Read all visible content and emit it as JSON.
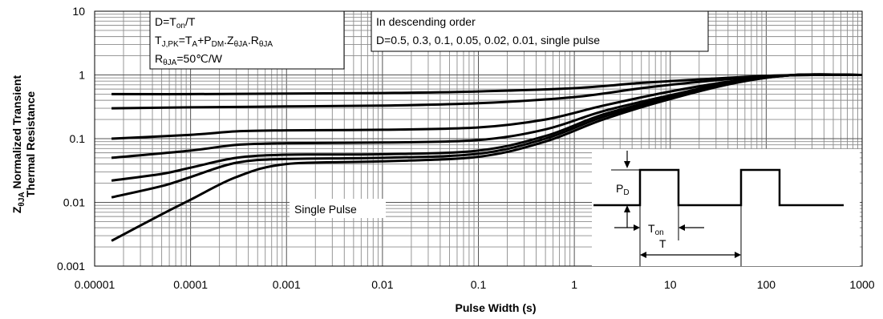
{
  "chart_data": {
    "type": "line",
    "xscale": "log",
    "yscale": "log",
    "xlim": [
      1e-05,
      1000
    ],
    "ylim": [
      0.001,
      10
    ],
    "xlabel": "Pulse Width (s)",
    "ylabel_line1": "Normalized Transient",
    "ylabel_sym": "Z",
    "ylabel_sub": "θJA",
    "ylabel_line2": "Thermal Resistance",
    "grid": true,
    "x_tick_labels": [
      "0.00001",
      "0.0001",
      "0.001",
      "0.01",
      "0.1",
      "1",
      "10",
      "100",
      "1000"
    ],
    "y_tick_labels": [
      "0.001",
      "0.01",
      "0.1",
      "1",
      "10"
    ],
    "x_ticks": [
      1e-05,
      0.0001,
      0.001,
      0.01,
      0.1,
      1,
      10,
      100,
      1000
    ],
    "y_ticks": [
      0.001,
      0.01,
      0.1,
      1,
      10
    ],
    "series": [
      {
        "values": [
          [
            1.5e-05,
            0.5
          ],
          [
            0.0001,
            0.5
          ],
          [
            0.001,
            0.51
          ],
          [
            0.01,
            0.52
          ],
          [
            0.1,
            0.55
          ],
          [
            1,
            0.62
          ],
          [
            5,
            0.75
          ],
          [
            20,
            0.85
          ],
          [
            100,
            0.97
          ],
          [
            300,
            1.0
          ],
          [
            1000,
            1.0
          ]
        ]
      },
      {
        "values": [
          [
            1.5e-05,
            0.3
          ],
          [
            0.0001,
            0.31
          ],
          [
            0.001,
            0.32
          ],
          [
            0.01,
            0.33
          ],
          [
            0.1,
            0.36
          ],
          [
            1,
            0.45
          ],
          [
            5,
            0.62
          ],
          [
            20,
            0.78
          ],
          [
            100,
            0.95
          ],
          [
            300,
            1.0
          ],
          [
            1000,
            1.0
          ]
        ]
      },
      {
        "values": [
          [
            1.5e-05,
            0.1
          ],
          [
            0.0001,
            0.115
          ],
          [
            0.0003,
            0.13
          ],
          [
            0.001,
            0.135
          ],
          [
            0.01,
            0.138
          ],
          [
            0.1,
            0.15
          ],
          [
            0.5,
            0.2
          ],
          [
            2,
            0.33
          ],
          [
            10,
            0.55
          ],
          [
            50,
            0.82
          ],
          [
            200,
            1.0
          ],
          [
            1000,
            1.0
          ]
        ]
      },
      {
        "values": [
          [
            1.5e-05,
            0.05
          ],
          [
            0.0001,
            0.065
          ],
          [
            0.0003,
            0.08
          ],
          [
            0.001,
            0.085
          ],
          [
            0.01,
            0.087
          ],
          [
            0.1,
            0.095
          ],
          [
            0.5,
            0.14
          ],
          [
            2,
            0.27
          ],
          [
            10,
            0.48
          ],
          [
            50,
            0.8
          ],
          [
            200,
            1.0
          ],
          [
            1000,
            1.0
          ]
        ]
      },
      {
        "values": [
          [
            1.5e-05,
            0.022
          ],
          [
            5e-05,
            0.028
          ],
          [
            0.0001,
            0.035
          ],
          [
            0.0003,
            0.05
          ],
          [
            0.001,
            0.056
          ],
          [
            0.01,
            0.057
          ],
          [
            0.1,
            0.065
          ],
          [
            0.5,
            0.11
          ],
          [
            2,
            0.24
          ],
          [
            10,
            0.45
          ],
          [
            50,
            0.78
          ],
          [
            200,
            1.0
          ],
          [
            1000,
            1.0
          ]
        ]
      },
      {
        "values": [
          [
            1.5e-05,
            0.012
          ],
          [
            5e-05,
            0.018
          ],
          [
            0.0001,
            0.025
          ],
          [
            0.0003,
            0.042
          ],
          [
            0.001,
            0.048
          ],
          [
            0.01,
            0.05
          ],
          [
            0.1,
            0.058
          ],
          [
            0.5,
            0.1
          ],
          [
            2,
            0.22
          ],
          [
            10,
            0.43
          ],
          [
            50,
            0.77
          ],
          [
            200,
            1.0
          ],
          [
            1000,
            1.0
          ]
        ]
      },
      {
        "values": [
          [
            1.5e-05,
            0.0025
          ],
          [
            5e-05,
            0.0065
          ],
          [
            0.0001,
            0.011
          ],
          [
            0.0003,
            0.025
          ],
          [
            0.001,
            0.04
          ],
          [
            0.01,
            0.044
          ],
          [
            0.1,
            0.052
          ],
          [
            0.5,
            0.09
          ],
          [
            2,
            0.2
          ],
          [
            10,
            0.42
          ],
          [
            50,
            0.76
          ],
          [
            200,
            1.0
          ],
          [
            1000,
            1.0
          ]
        ]
      }
    ],
    "annotations": {
      "box1": {
        "line1_main": "D=T",
        "line1_sub": "on",
        "line1_tail": "/T",
        "line2_a": "T",
        "line2_sub_a": "J,PK",
        "line2_b": "=T",
        "line2_sub_b": "A",
        "line2_c": "+P",
        "line2_sub_c": "DM",
        "line2_d": ".Z",
        "line2_sub_d": "θJA",
        "line2_e": ".R",
        "line2_sub_e": "θJA",
        "line3_a": "R",
        "line3_sub": "θJA",
        "line3_b": "=50℃/W"
      },
      "box2": {
        "line1": "In descending order",
        "line2": "D=0.5, 0.3, 0.1, 0.05, 0.02, 0.01, single pulse"
      },
      "single_pulse": "Single Pulse",
      "pulse": {
        "pd_main": "P",
        "pd_sub": "D",
        "ton_main": "T",
        "ton_sub": "on",
        "t_label": "T"
      }
    }
  }
}
